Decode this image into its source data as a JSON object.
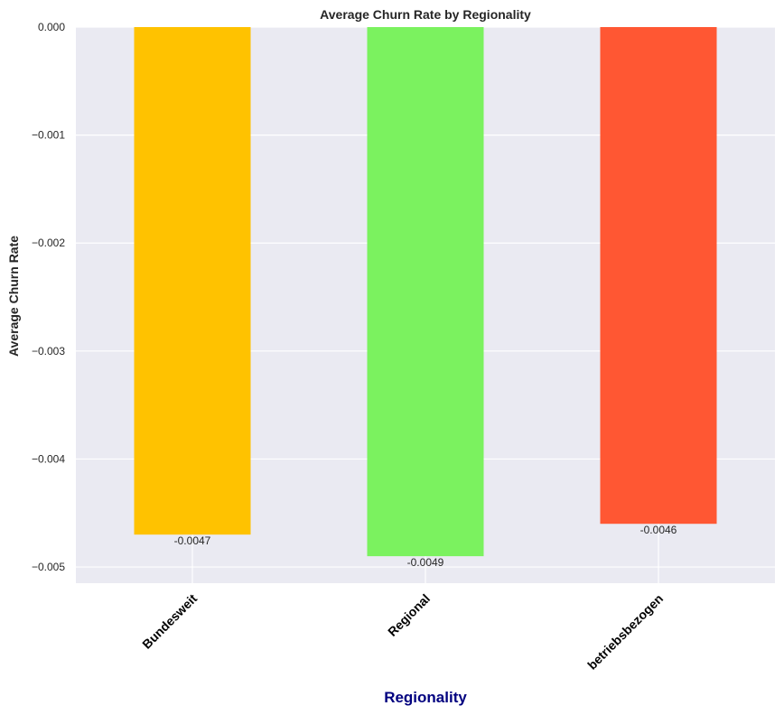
{
  "chart_data": {
    "type": "bar",
    "title": "Average Churn Rate by Regionality",
    "xlabel": "Regionality",
    "ylabel": "Average Churn Rate",
    "categories": [
      "Bundesweit",
      "Regional",
      "betriebsbezogen"
    ],
    "values": [
      -0.0047,
      -0.0049,
      -0.0046
    ],
    "data_labels": [
      "-0.0047",
      "-0.0049",
      "-0.0046"
    ],
    "bar_colors": [
      "#ffc200",
      "#7bf25f",
      "#ff5733"
    ],
    "ylim": [
      -0.00515,
      0.0
    ],
    "yticks": [
      0.0,
      -0.001,
      -0.002,
      -0.003,
      -0.004,
      -0.005
    ],
    "ytick_labels": [
      "0.000",
      "−0.001",
      "−0.002",
      "−0.003",
      "−0.004",
      "−0.005"
    ],
    "grid": true,
    "background_color": "#eaeaf2",
    "xlabel_color": "#00007f",
    "xtick_rotation": 45
  }
}
